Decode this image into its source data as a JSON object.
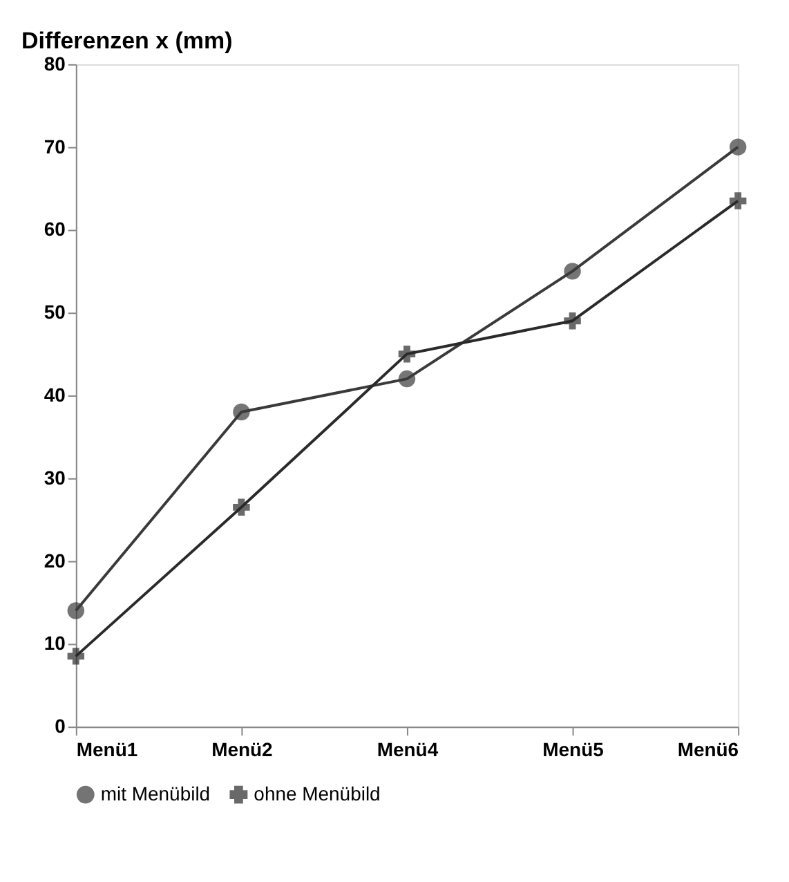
{
  "chart_data": {
    "type": "line",
    "ylabel": "Differenzen x (mm)",
    "categories": [
      "Menü1",
      "Menü2",
      "Menü4",
      "Menü5",
      "Menü6"
    ],
    "series": [
      {
        "name": "mit Menübild",
        "color": "#3a3a3a",
        "marker": "circle",
        "values": [
          14,
          38,
          42,
          55,
          70
        ]
      },
      {
        "name": "ohne Menübild",
        "color": "#2a2a2a",
        "marker": "cross",
        "values": [
          8.5,
          26.5,
          45,
          49,
          63.5
        ]
      }
    ],
    "ylim": [
      0,
      80
    ],
    "yticks": [
      0,
      10,
      20,
      30,
      40,
      50,
      60,
      70,
      80
    ],
    "grid": false,
    "legend": "bottom"
  }
}
